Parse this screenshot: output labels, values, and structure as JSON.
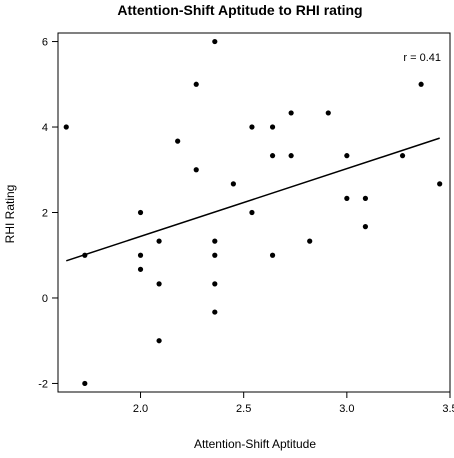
{
  "chart_data": {
    "type": "scatter",
    "title": "Attention-Shift Aptitude to RHI rating",
    "xlabel": "Attention-Shift Aptitude",
    "ylabel": "RHI Rating",
    "xlim": [
      1.6,
      3.5
    ],
    "ylim": [
      -2.2,
      6.2
    ],
    "xticks": [
      2.0,
      2.5,
      3.0,
      3.5
    ],
    "xtick_labels": [
      "2.0",
      "2.5",
      "3.0",
      "3.5"
    ],
    "yticks": [
      -2,
      0,
      2,
      4,
      6
    ],
    "ytick_labels": [
      "-2",
      "0",
      "2",
      "4",
      "6"
    ],
    "annotation": "r = 0.41",
    "grid": false,
    "points": [
      {
        "x": 1.64,
        "y": 4.0
      },
      {
        "x": 1.73,
        "y": 1.0
      },
      {
        "x": 1.73,
        "y": -2.0
      },
      {
        "x": 2.0,
        "y": 2.0
      },
      {
        "x": 2.0,
        "y": 1.0
      },
      {
        "x": 2.0,
        "y": 0.67
      },
      {
        "x": 2.09,
        "y": 1.33
      },
      {
        "x": 2.09,
        "y": 0.33
      },
      {
        "x": 2.09,
        "y": -1.0
      },
      {
        "x": 2.18,
        "y": 3.67
      },
      {
        "x": 2.27,
        "y": 5.0
      },
      {
        "x": 2.27,
        "y": 3.0
      },
      {
        "x": 2.36,
        "y": 6.0
      },
      {
        "x": 2.36,
        "y": 1.33
      },
      {
        "x": 2.36,
        "y": 1.0
      },
      {
        "x": 2.36,
        "y": 0.33
      },
      {
        "x": 2.36,
        "y": -0.33
      },
      {
        "x": 2.45,
        "y": 2.67
      },
      {
        "x": 2.54,
        "y": 4.0
      },
      {
        "x": 2.54,
        "y": 2.0
      },
      {
        "x": 2.64,
        "y": 4.0
      },
      {
        "x": 2.64,
        "y": 3.33
      },
      {
        "x": 2.64,
        "y": 1.0
      },
      {
        "x": 2.73,
        "y": 4.33
      },
      {
        "x": 2.73,
        "y": 3.33
      },
      {
        "x": 2.82,
        "y": 1.33
      },
      {
        "x": 2.91,
        "y": 4.33
      },
      {
        "x": 3.0,
        "y": 3.33
      },
      {
        "x": 3.0,
        "y": 2.33
      },
      {
        "x": 3.09,
        "y": 2.33
      },
      {
        "x": 3.09,
        "y": 1.67
      },
      {
        "x": 3.27,
        "y": 3.33
      },
      {
        "x": 3.36,
        "y": 5.0
      },
      {
        "x": 3.45,
        "y": 2.67
      }
    ],
    "fit_line": {
      "x": [
        1.64,
        3.45
      ],
      "y": [
        0.87,
        3.74
      ]
    }
  }
}
